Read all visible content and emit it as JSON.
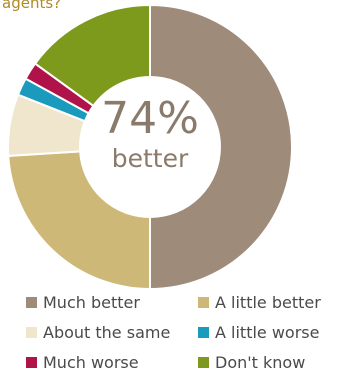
{
  "title_fragment": "agents?",
  "center": {
    "value": "74%",
    "label": "better"
  },
  "chart_data": {
    "type": "pie",
    "variant": "donut",
    "categories": [
      "Much better",
      "A little better",
      "About the same",
      "A little worse",
      "Much worse",
      "Don't know"
    ],
    "values": [
      50,
      24,
      7,
      2,
      2,
      15
    ],
    "colors": [
      "#9e8b79",
      "#cdb877",
      "#efe6cd",
      "#1a9bbd",
      "#b0134a",
      "#7e9a1c"
    ]
  },
  "legend": {
    "items": [
      {
        "label": "Much better",
        "color": "#9e8b79"
      },
      {
        "label": "A little better",
        "color": "#cdb877"
      },
      {
        "label": "About the same",
        "color": "#efe6cd"
      },
      {
        "label": "A little worse",
        "color": "#1a9bbd"
      },
      {
        "label": "Much worse",
        "color": "#b0134a"
      },
      {
        "label": "Don't know",
        "color": "#7e9a1c"
      }
    ]
  }
}
